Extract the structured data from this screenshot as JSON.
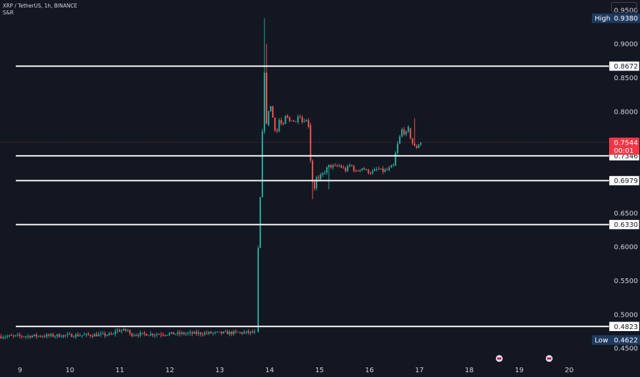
{
  "header": {
    "symbol_line": "XRP / TetherUS, 1h, BINANCE",
    "study_label": "S&R"
  },
  "colors": {
    "background": "#131722",
    "up": "#26a69a",
    "down": "#ef5350",
    "level_line": "#ffffff",
    "axis_text": "#d1d4dc",
    "high_low_label_bg": "#1e3a5f",
    "price_tag_bg": "#f23645"
  },
  "chart_data": {
    "type": "candlestick",
    "x_axis": {
      "ticks": [
        "9",
        "10",
        "11",
        "12",
        "13",
        "14",
        "15",
        "16",
        "17",
        "18",
        "19",
        "20"
      ],
      "range_days": [
        8.6,
        20.8
      ]
    },
    "y_axis": {
      "range": [
        0.44,
        0.965
      ],
      "ticks": [
        "0.9500",
        "0.9000",
        "0.8500",
        "0.8000",
        "0.6500",
        "0.6000",
        "0.5500",
        "0.5000",
        "0.4500"
      ]
    },
    "grid": false,
    "levels": [
      {
        "value": 0.8672,
        "label": "0.8672"
      },
      {
        "value": 0.7346,
        "label": "0.7346"
      },
      {
        "value": 0.6979,
        "label": "0.6979"
      },
      {
        "value": 0.633,
        "label": "0.6330"
      },
      {
        "value": 0.4823,
        "label": "0.4823"
      }
    ],
    "high": {
      "label": "High",
      "value": "0.9380"
    },
    "low": {
      "label": "Low",
      "value": "0.4622"
    },
    "last_price": {
      "value": 0.7544,
      "label": "0.7544",
      "countdown": "00:01"
    },
    "events_on_days": [
      18.6,
      19.6
    ],
    "segments": [
      {
        "from_day": 8.6,
        "to_day": 13.72,
        "start": 0.4675,
        "end": 0.4735,
        "mid": 0.4705,
        "spread": 0.0025,
        "mid_dip_day": 10.3,
        "bump_day": 11.0,
        "bump": 0.006
      },
      {
        "from_day": 13.75,
        "to_day": 13.96,
        "path": [
          0.474,
          0.585,
          0.64,
          0.72,
          0.8,
          0.875,
          0.78
        ]
      },
      {
        "from_day": 13.96,
        "to_day": 14.8,
        "path": [
          0.78,
          0.815,
          0.79,
          0.765,
          0.79,
          0.775,
          0.795,
          0.785,
          0.79,
          0.782,
          0.8,
          0.785,
          0.79,
          0.78
        ]
      },
      {
        "from_day": 14.8,
        "to_day": 15.0,
        "path": [
          0.78,
          0.735,
          0.705,
          0.685,
          0.69,
          0.705,
          0.7
        ]
      },
      {
        "from_day": 15.0,
        "to_day": 16.5,
        "path": [
          0.7,
          0.71,
          0.72,
          0.718,
          0.72,
          0.713,
          0.722,
          0.71,
          0.718,
          0.712,
          0.71,
          0.715,
          0.712,
          0.714,
          0.72
        ]
      },
      {
        "from_day": 16.5,
        "to_day": 16.8,
        "path": [
          0.72,
          0.745,
          0.76,
          0.775,
          0.765,
          0.775
        ]
      },
      {
        "from_day": 16.8,
        "to_day": 17.05,
        "path": [
          0.775,
          0.76,
          0.75,
          0.745,
          0.752,
          0.7544
        ]
      }
    ],
    "spikes": [
      {
        "day": 13.88,
        "high": 0.938
      },
      {
        "day": 13.93,
        "high": 0.9
      },
      {
        "day": 14.85,
        "low": 0.6705
      },
      {
        "day": 15.2,
        "low": 0.685
      },
      {
        "day": 16.9,
        "high": 0.79
      }
    ]
  }
}
